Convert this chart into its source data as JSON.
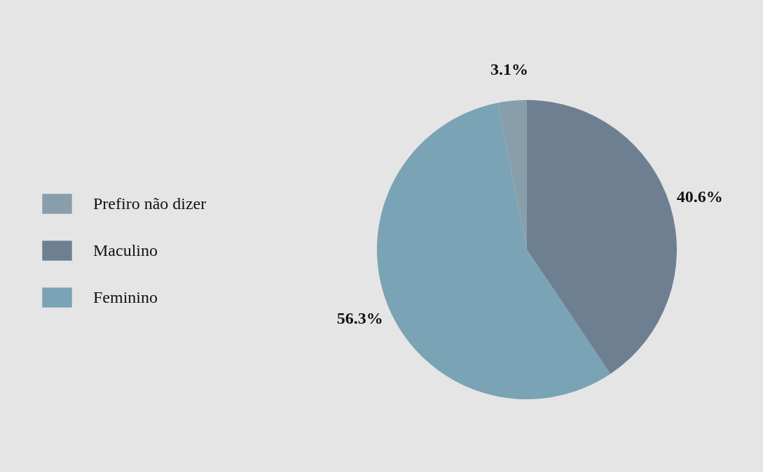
{
  "chart_data": {
    "type": "pie",
    "categories": [
      "Prefiro não dizer",
      "Maculino",
      "Feminino"
    ],
    "values": [
      3.1,
      40.6,
      56.3
    ],
    "colors": [
      "#899eab",
      "#6f7f92",
      "#7aa3b5"
    ],
    "value_labels": [
      "3.1%",
      "40.6%",
      "56.3%"
    ],
    "legend": "left"
  }
}
